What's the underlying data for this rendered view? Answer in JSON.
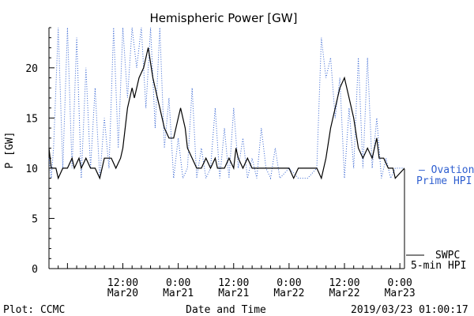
{
  "chart_data": {
    "type": "line",
    "title": "Hemispheric Power [GW]",
    "ylabel": "P [GW]",
    "xlabel": "Date and Time",
    "ylim": [
      0,
      24
    ],
    "xlim": [
      "2019-03-19T20:00",
      "2019-03-23T01:00"
    ],
    "y_ticks": [
      0,
      5,
      10,
      15,
      20
    ],
    "x_ticks": [
      {
        "x": "2019-03-20T12:00",
        "time": "12:00",
        "date": "Mar20"
      },
      {
        "x": "2019-03-21T00:00",
        "time": "0:00",
        "date": "Mar21"
      },
      {
        "x": "2019-03-21T12:00",
        "time": "12:00",
        "date": "Mar21"
      },
      {
        "x": "2019-03-22T00:00",
        "time": "0:00",
        "date": "Mar22"
      },
      {
        "x": "2019-03-22T12:00",
        "time": "12:00",
        "date": "Mar22"
      },
      {
        "x": "2019-03-23T00:00",
        "time": "0:00",
        "date": "Mar23"
      }
    ],
    "grid": false,
    "series": [
      {
        "name": "SWPC 5-min HPI",
        "color": "#000000",
        "style": "solid",
        "points": [
          [
            "2019-03-19T20:00",
            12
          ],
          [
            "2019-03-19T20:30",
            10
          ],
          [
            "2019-03-19T21:30",
            10
          ],
          [
            "2019-03-19T22:00",
            9
          ],
          [
            "2019-03-19T23:00",
            10
          ],
          [
            "2019-03-20T00:00",
            10
          ],
          [
            "2019-03-20T01:00",
            11
          ],
          [
            "2019-03-20T01:30",
            10
          ],
          [
            "2019-03-20T02:30",
            11
          ],
          [
            "2019-03-20T03:00",
            10
          ],
          [
            "2019-03-20T04:00",
            11
          ],
          [
            "2019-03-20T05:00",
            10
          ],
          [
            "2019-03-20T06:00",
            10
          ],
          [
            "2019-03-20T07:00",
            9
          ],
          [
            "2019-03-20T08:00",
            11
          ],
          [
            "2019-03-20T09:30",
            11
          ],
          [
            "2019-03-20T10:30",
            10
          ],
          [
            "2019-03-20T11:30",
            11
          ],
          [
            "2019-03-20T12:00",
            12
          ],
          [
            "2019-03-20T13:00",
            16
          ],
          [
            "2019-03-20T14:00",
            18
          ],
          [
            "2019-03-20T14:30",
            17
          ],
          [
            "2019-03-20T15:30",
            19
          ],
          [
            "2019-03-20T16:30",
            20
          ],
          [
            "2019-03-20T17:30",
            22
          ],
          [
            "2019-03-20T18:30",
            19
          ],
          [
            "2019-03-20T19:30",
            17
          ],
          [
            "2019-03-20T20:00",
            16
          ],
          [
            "2019-03-20T21:00",
            14
          ],
          [
            "2019-03-20T22:00",
            13
          ],
          [
            "2019-03-20T23:00",
            13
          ],
          [
            "2019-03-21T00:00",
            15
          ],
          [
            "2019-03-21T00:30",
            16
          ],
          [
            "2019-03-21T01:30",
            14
          ],
          [
            "2019-03-21T02:00",
            12
          ],
          [
            "2019-03-21T03:00",
            11
          ],
          [
            "2019-03-21T04:00",
            10
          ],
          [
            "2019-03-21T05:00",
            10
          ],
          [
            "2019-03-21T06:00",
            11
          ],
          [
            "2019-03-21T07:00",
            10
          ],
          [
            "2019-03-21T08:00",
            11
          ],
          [
            "2019-03-21T08:30",
            10
          ],
          [
            "2019-03-21T10:00",
            10
          ],
          [
            "2019-03-21T11:00",
            11
          ],
          [
            "2019-03-21T12:00",
            10
          ],
          [
            "2019-03-21T12:30",
            12
          ],
          [
            "2019-03-21T13:00",
            11
          ],
          [
            "2019-03-21T14:00",
            10
          ],
          [
            "2019-03-21T15:00",
            11
          ],
          [
            "2019-03-21T16:00",
            10
          ],
          [
            "2019-03-21T18:00",
            10
          ],
          [
            "2019-03-21T22:00",
            10
          ],
          [
            "2019-03-22T00:00",
            10
          ],
          [
            "2019-03-22T01:00",
            9
          ],
          [
            "2019-03-22T02:00",
            10
          ],
          [
            "2019-03-22T04:00",
            10
          ],
          [
            "2019-03-22T05:00",
            10
          ],
          [
            "2019-03-22T06:00",
            10
          ],
          [
            "2019-03-22T07:00",
            9
          ],
          [
            "2019-03-22T08:00",
            11
          ],
          [
            "2019-03-22T09:00",
            14
          ],
          [
            "2019-03-22T10:00",
            16
          ],
          [
            "2019-03-22T11:00",
            18
          ],
          [
            "2019-03-22T12:00",
            19
          ],
          [
            "2019-03-22T13:00",
            17
          ],
          [
            "2019-03-22T14:00",
            15
          ],
          [
            "2019-03-22T15:00",
            12
          ],
          [
            "2019-03-22T16:00",
            11
          ],
          [
            "2019-03-22T17:00",
            12
          ],
          [
            "2019-03-22T18:00",
            11
          ],
          [
            "2019-03-22T19:00",
            13
          ],
          [
            "2019-03-22T19:30",
            11
          ],
          [
            "2019-03-22T20:30",
            11
          ],
          [
            "2019-03-22T21:30",
            10
          ],
          [
            "2019-03-22T22:30",
            10
          ],
          [
            "2019-03-22T23:00",
            9
          ],
          [
            "2019-03-23T01:00",
            10
          ]
        ]
      },
      {
        "name": "Ovation Prime HPI",
        "color": "#2f5fd0",
        "style": "dotted",
        "points": [
          [
            "2019-03-19T20:00",
            11
          ],
          [
            "2019-03-19T20:30",
            9
          ],
          [
            "2019-03-19T21:00",
            12
          ],
          [
            "2019-03-19T22:00",
            24
          ],
          [
            "2019-03-19T23:00",
            10
          ],
          [
            "2019-03-20T00:00",
            24
          ],
          [
            "2019-03-20T01:00",
            10
          ],
          [
            "2019-03-20T02:00",
            23
          ],
          [
            "2019-03-20T03:00",
            9
          ],
          [
            "2019-03-20T04:00",
            20
          ],
          [
            "2019-03-20T05:00",
            10
          ],
          [
            "2019-03-20T06:00",
            18
          ],
          [
            "2019-03-20T07:00",
            9
          ],
          [
            "2019-03-20T08:00",
            15
          ],
          [
            "2019-03-20T09:00",
            10
          ],
          [
            "2019-03-20T10:00",
            24
          ],
          [
            "2019-03-20T11:00",
            12
          ],
          [
            "2019-03-20T12:00",
            24
          ],
          [
            "2019-03-20T13:00",
            17
          ],
          [
            "2019-03-20T14:00",
            24
          ],
          [
            "2019-03-20T15:00",
            20
          ],
          [
            "2019-03-20T16:00",
            24
          ],
          [
            "2019-03-20T17:00",
            16
          ],
          [
            "2019-03-20T18:00",
            24
          ],
          [
            "2019-03-20T19:00",
            14
          ],
          [
            "2019-03-20T20:00",
            24
          ],
          [
            "2019-03-20T21:00",
            12
          ],
          [
            "2019-03-20T22:00",
            17
          ],
          [
            "2019-03-20T23:00",
            9
          ],
          [
            "2019-03-21T00:00",
            13
          ],
          [
            "2019-03-21T01:00",
            9
          ],
          [
            "2019-03-21T02:00",
            10
          ],
          [
            "2019-03-21T03:00",
            18
          ],
          [
            "2019-03-21T04:00",
            9
          ],
          [
            "2019-03-21T05:00",
            12
          ],
          [
            "2019-03-21T06:00",
            9
          ],
          [
            "2019-03-21T07:00",
            10
          ],
          [
            "2019-03-21T08:00",
            16
          ],
          [
            "2019-03-21T09:00",
            9
          ],
          [
            "2019-03-21T10:00",
            14
          ],
          [
            "2019-03-21T11:00",
            9
          ],
          [
            "2019-03-21T12:00",
            16
          ],
          [
            "2019-03-21T13:00",
            10
          ],
          [
            "2019-03-21T14:00",
            13
          ],
          [
            "2019-03-21T15:00",
            9
          ],
          [
            "2019-03-21T16:00",
            11
          ],
          [
            "2019-03-21T17:00",
            9
          ],
          [
            "2019-03-21T18:00",
            14
          ],
          [
            "2019-03-21T19:00",
            10
          ],
          [
            "2019-03-21T20:00",
            9
          ],
          [
            "2019-03-21T21:00",
            12
          ],
          [
            "2019-03-21T22:00",
            9
          ],
          [
            "2019-03-22T00:00",
            10
          ],
          [
            "2019-03-22T02:00",
            9
          ],
          [
            "2019-03-22T04:00",
            9
          ],
          [
            "2019-03-22T06:00",
            10
          ],
          [
            "2019-03-22T07:00",
            23
          ],
          [
            "2019-03-22T08:00",
            19
          ],
          [
            "2019-03-22T09:00",
            21
          ],
          [
            "2019-03-22T10:00",
            15
          ],
          [
            "2019-03-22T11:00",
            19
          ],
          [
            "2019-03-22T12:00",
            9
          ],
          [
            "2019-03-22T13:00",
            16
          ],
          [
            "2019-03-22T14:00",
            10
          ],
          [
            "2019-03-22T15:00",
            21
          ],
          [
            "2019-03-22T16:00",
            10
          ],
          [
            "2019-03-22T17:00",
            21
          ],
          [
            "2019-03-22T18:00",
            10
          ],
          [
            "2019-03-22T19:00",
            15
          ],
          [
            "2019-03-22T20:00",
            9
          ],
          [
            "2019-03-22T21:00",
            11
          ],
          [
            "2019-03-22T22:00",
            9
          ],
          [
            "2019-03-22T23:00",
            10
          ],
          [
            "2019-03-23T01:00",
            10
          ]
        ]
      }
    ],
    "legend": {
      "placement": "right",
      "ovation_line1": "– Ovation",
      "ovation_line2": "Prime HPI",
      "swpc_line1": "SWPC",
      "swpc_line2": "5-min HPI"
    }
  },
  "footer": {
    "left": "Plot: CCMC",
    "right": "2019/03/23 01:00:17"
  }
}
